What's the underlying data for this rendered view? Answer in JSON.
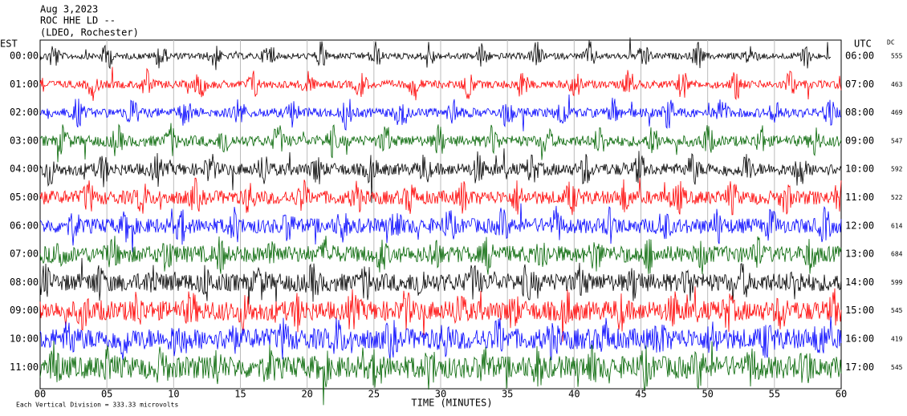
{
  "header": {
    "lines": [
      "Aug 3,2023",
      "ROC HHE LD --",
      "(LDEO, Rochester)"
    ]
  },
  "left_label": "EST",
  "right_label": "UTC",
  "dc_label": "DC",
  "rows": [
    {
      "est": "00:00",
      "utc": "06:00",
      "dc": "555",
      "color": "#000000"
    },
    {
      "est": "01:00",
      "utc": "07:00",
      "dc": "463",
      "color": "#ff0000"
    },
    {
      "est": "02:00",
      "utc": "08:00",
      "dc": "469",
      "color": "#0000ff"
    },
    {
      "est": "03:00",
      "utc": "09:00",
      "dc": "547",
      "color": "#006400"
    },
    {
      "est": "04:00",
      "utc": "10:00",
      "dc": "592",
      "color": "#000000"
    },
    {
      "est": "05:00",
      "utc": "11:00",
      "dc": "522",
      "color": "#ff0000"
    },
    {
      "est": "06:00",
      "utc": "12:00",
      "dc": "614",
      "color": "#0000ff"
    },
    {
      "est": "07:00",
      "utc": "13:00",
      "dc": "684",
      "color": "#006400"
    },
    {
      "est": "08:00",
      "utc": "14:00",
      "dc": "599",
      "color": "#000000"
    },
    {
      "est": "09:00",
      "utc": "15:00",
      "dc": "545",
      "color": "#ff0000"
    },
    {
      "est": "10:00",
      "utc": "16:00",
      "dc": "419",
      "color": "#0000ff"
    },
    {
      "est": "11:00",
      "utc": "17:00",
      "dc": "545",
      "color": "#006400"
    }
  ],
  "x_axis": {
    "ticks": [
      "00",
      "05",
      "10",
      "15",
      "20",
      "25",
      "30",
      "35",
      "40",
      "45",
      "50",
      "55",
      "60"
    ],
    "label": "TIME (MINUTES)"
  },
  "footer": "Each Vertical Division =  333.33 microvolts"
}
